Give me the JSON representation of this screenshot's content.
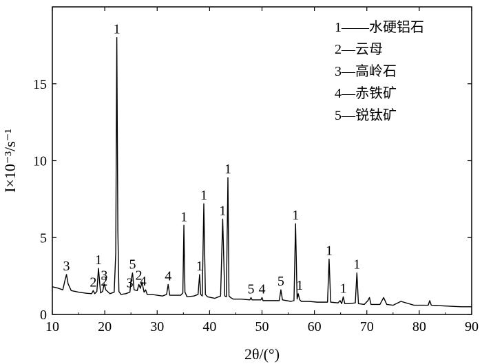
{
  "chart_data": {
    "type": "line",
    "xlabel": "2θ/(°)",
    "ylabel": "I×10⁻³/s⁻¹",
    "xlim": [
      10,
      90
    ],
    "ylim": [
      0,
      20
    ],
    "xticks": [
      "10",
      "20",
      "30",
      "40",
      "50",
      "60",
      "70",
      "80",
      "90"
    ],
    "yticks": [
      "0",
      "5",
      "10",
      "15"
    ],
    "grid": false,
    "legend_position": "top-right",
    "legend": [
      {
        "key": "1",
        "label": "1——水硬铝石"
      },
      {
        "key": "2",
        "label": "2—云母"
      },
      {
        "key": "3",
        "label": "3—高岭石"
      },
      {
        "key": "4",
        "label": "4—赤铁矿"
      },
      {
        "key": "5",
        "label": "5—锐钛矿"
      }
    ],
    "series": [
      {
        "x": [
          10,
          11,
          12,
          12.4,
          12.7,
          13.0,
          13.6,
          15,
          16.5,
          17.5,
          17.8,
          18.1,
          18.5,
          18.8,
          19.2,
          19.6,
          19.9,
          20.2,
          21,
          21.8,
          22.1,
          22.3,
          22.5,
          22.7,
          23.1,
          24,
          24.8,
          25.0,
          25.3,
          25.6,
          26.2,
          26.5,
          26.8,
          27.1,
          27.5,
          27.8,
          28.1,
          29,
          31,
          31.8,
          32.1,
          32.4,
          33.5,
          34.5,
          34.9,
          35.1,
          35.3,
          35.7,
          37,
          37.8,
          38.1,
          38.3,
          38.6,
          38.9,
          39.2,
          39.6,
          41,
          42.1,
          42.5,
          42.9,
          43.2,
          43.5,
          43.7,
          44.0,
          44.5,
          46,
          47.7,
          47.9,
          48.1,
          49.8,
          50.0,
          50.2,
          52,
          53.3,
          53.6,
          53.9,
          55.5,
          56.1,
          56.4,
          56.7,
          56.9,
          57.2,
          57.5,
          59,
          60.5,
          62.5,
          62.8,
          63.1,
          64.5,
          64.9,
          65.2,
          65.5,
          65.8,
          66.5,
          67.8,
          68.1,
          68.4,
          69.5,
          70.2,
          70.5,
          70.8,
          72.5,
          73.2,
          73.8,
          75,
          76.5,
          79,
          81.7,
          82.0,
          82.3,
          85,
          88,
          90
        ],
        "y": [
          1.8,
          1.72,
          1.6,
          2.2,
          2.6,
          2.0,
          1.55,
          1.45,
          1.38,
          1.35,
          1.55,
          1.35,
          1.5,
          3.0,
          1.4,
          1.5,
          2.0,
          1.6,
          1.35,
          1.45,
          4.0,
          18.0,
          5.5,
          1.5,
          1.3,
          1.35,
          1.45,
          2.2,
          2.7,
          1.6,
          1.55,
          1.95,
          1.7,
          2.1,
          1.45,
          1.6,
          1.3,
          1.3,
          1.2,
          1.3,
          1.95,
          1.25,
          1.25,
          1.25,
          1.4,
          5.8,
          1.45,
          1.15,
          1.2,
          1.3,
          2.6,
          1.3,
          1.2,
          7.2,
          1.3,
          1.15,
          1.05,
          1.2,
          6.2,
          1.2,
          1.15,
          8.9,
          1.2,
          1.1,
          1.0,
          1.0,
          0.95,
          1.1,
          0.95,
          0.95,
          1.1,
          0.9,
          0.9,
          0.9,
          1.6,
          0.95,
          0.85,
          0.9,
          5.9,
          1.0,
          1.35,
          0.95,
          0.85,
          0.85,
          0.8,
          0.8,
          3.6,
          0.8,
          0.75,
          0.9,
          0.7,
          1.15,
          0.7,
          0.7,
          0.75,
          2.7,
          0.7,
          0.65,
          0.9,
          1.1,
          0.65,
          0.65,
          1.1,
          0.65,
          0.6,
          0.85,
          0.6,
          0.6,
          0.9,
          0.6,
          0.55,
          0.5,
          0.5
        ]
      }
    ],
    "peak_labels": [
      {
        "text": "3",
        "x": 12.7,
        "y": 2.6
      },
      {
        "text": "2",
        "x": 17.8,
        "y": 1.55
      },
      {
        "text": "1",
        "x": 18.8,
        "y": 3.0
      },
      {
        "text": "3",
        "x": 19.9,
        "y": 2.0
      },
      {
        "text": "2",
        "x": 19.9,
        "y": 1.6
      },
      {
        "text": "1",
        "x": 22.3,
        "y": 18.0
      },
      {
        "text": "3",
        "x": 24.8,
        "y": 1.5
      },
      {
        "text": "5",
        "x": 25.3,
        "y": 2.7
      },
      {
        "text": "2",
        "x": 26.5,
        "y": 2.0
      },
      {
        "text": "4",
        "x": 27.3,
        "y": 1.6
      },
      {
        "text": "4",
        "x": 32.1,
        "y": 1.95
      },
      {
        "text": "1",
        "x": 35.1,
        "y": 5.8
      },
      {
        "text": "1",
        "x": 38.1,
        "y": 2.6
      },
      {
        "text": "1",
        "x": 38.9,
        "y": 7.2
      },
      {
        "text": "1",
        "x": 42.5,
        "y": 6.2
      },
      {
        "text": "1",
        "x": 43.5,
        "y": 8.9
      },
      {
        "text": "5",
        "x": 47.9,
        "y": 1.1
      },
      {
        "text": "4",
        "x": 50.0,
        "y": 1.1
      },
      {
        "text": "5",
        "x": 53.6,
        "y": 1.6
      },
      {
        "text": "1",
        "x": 56.4,
        "y": 5.9
      },
      {
        "text": "1",
        "x": 57.2,
        "y": 1.35
      },
      {
        "text": "1",
        "x": 62.8,
        "y": 3.6
      },
      {
        "text": "1",
        "x": 65.5,
        "y": 1.15
      },
      {
        "text": "1",
        "x": 68.1,
        "y": 2.7
      }
    ]
  }
}
